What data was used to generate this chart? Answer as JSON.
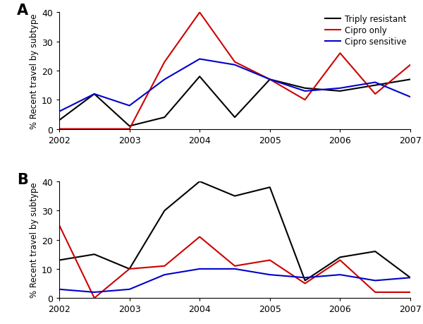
{
  "x_ticks": [
    2002,
    2003,
    2004,
    2005,
    2006,
    2007
  ],
  "x_values": [
    2002,
    2002.5,
    2003,
    2003.5,
    2004,
    2004.5,
    2005,
    2005.5,
    2006,
    2006.5,
    2007
  ],
  "panel_A": {
    "triply_resistant": [
      3,
      12,
      1,
      4,
      18,
      4,
      17,
      14,
      13,
      15,
      17
    ],
    "cipro_only": [
      0,
      0,
      0,
      23,
      40,
      23,
      17,
      10,
      26,
      12,
      22
    ],
    "cipro_sensitive": [
      6,
      12,
      8,
      17,
      24,
      22,
      17,
      13,
      14,
      16,
      11
    ]
  },
  "panel_B": {
    "triply_resistant": [
      13,
      15,
      10,
      30,
      40,
      35,
      38,
      6,
      14,
      16,
      7
    ],
    "cipro_only": [
      25,
      0,
      10,
      11,
      21,
      11,
      13,
      5,
      13,
      2,
      2
    ],
    "cipro_sensitive": [
      3,
      2,
      3,
      8,
      10,
      10,
      8,
      7,
      8,
      6,
      7
    ]
  },
  "colors": {
    "triply_resistant": "#000000",
    "cipro_only": "#cc0000",
    "cipro_sensitive": "#0000cc"
  },
  "legend_labels": [
    "Triply resistant",
    "Cipro only",
    "Cipro sensitive"
  ],
  "ylabel": "% Recent travel by subtype",
  "ylim": [
    0,
    40
  ],
  "yticks": [
    0,
    10,
    20,
    30,
    40
  ],
  "panel_labels": [
    "A",
    "B"
  ],
  "linewidth": 1.5
}
